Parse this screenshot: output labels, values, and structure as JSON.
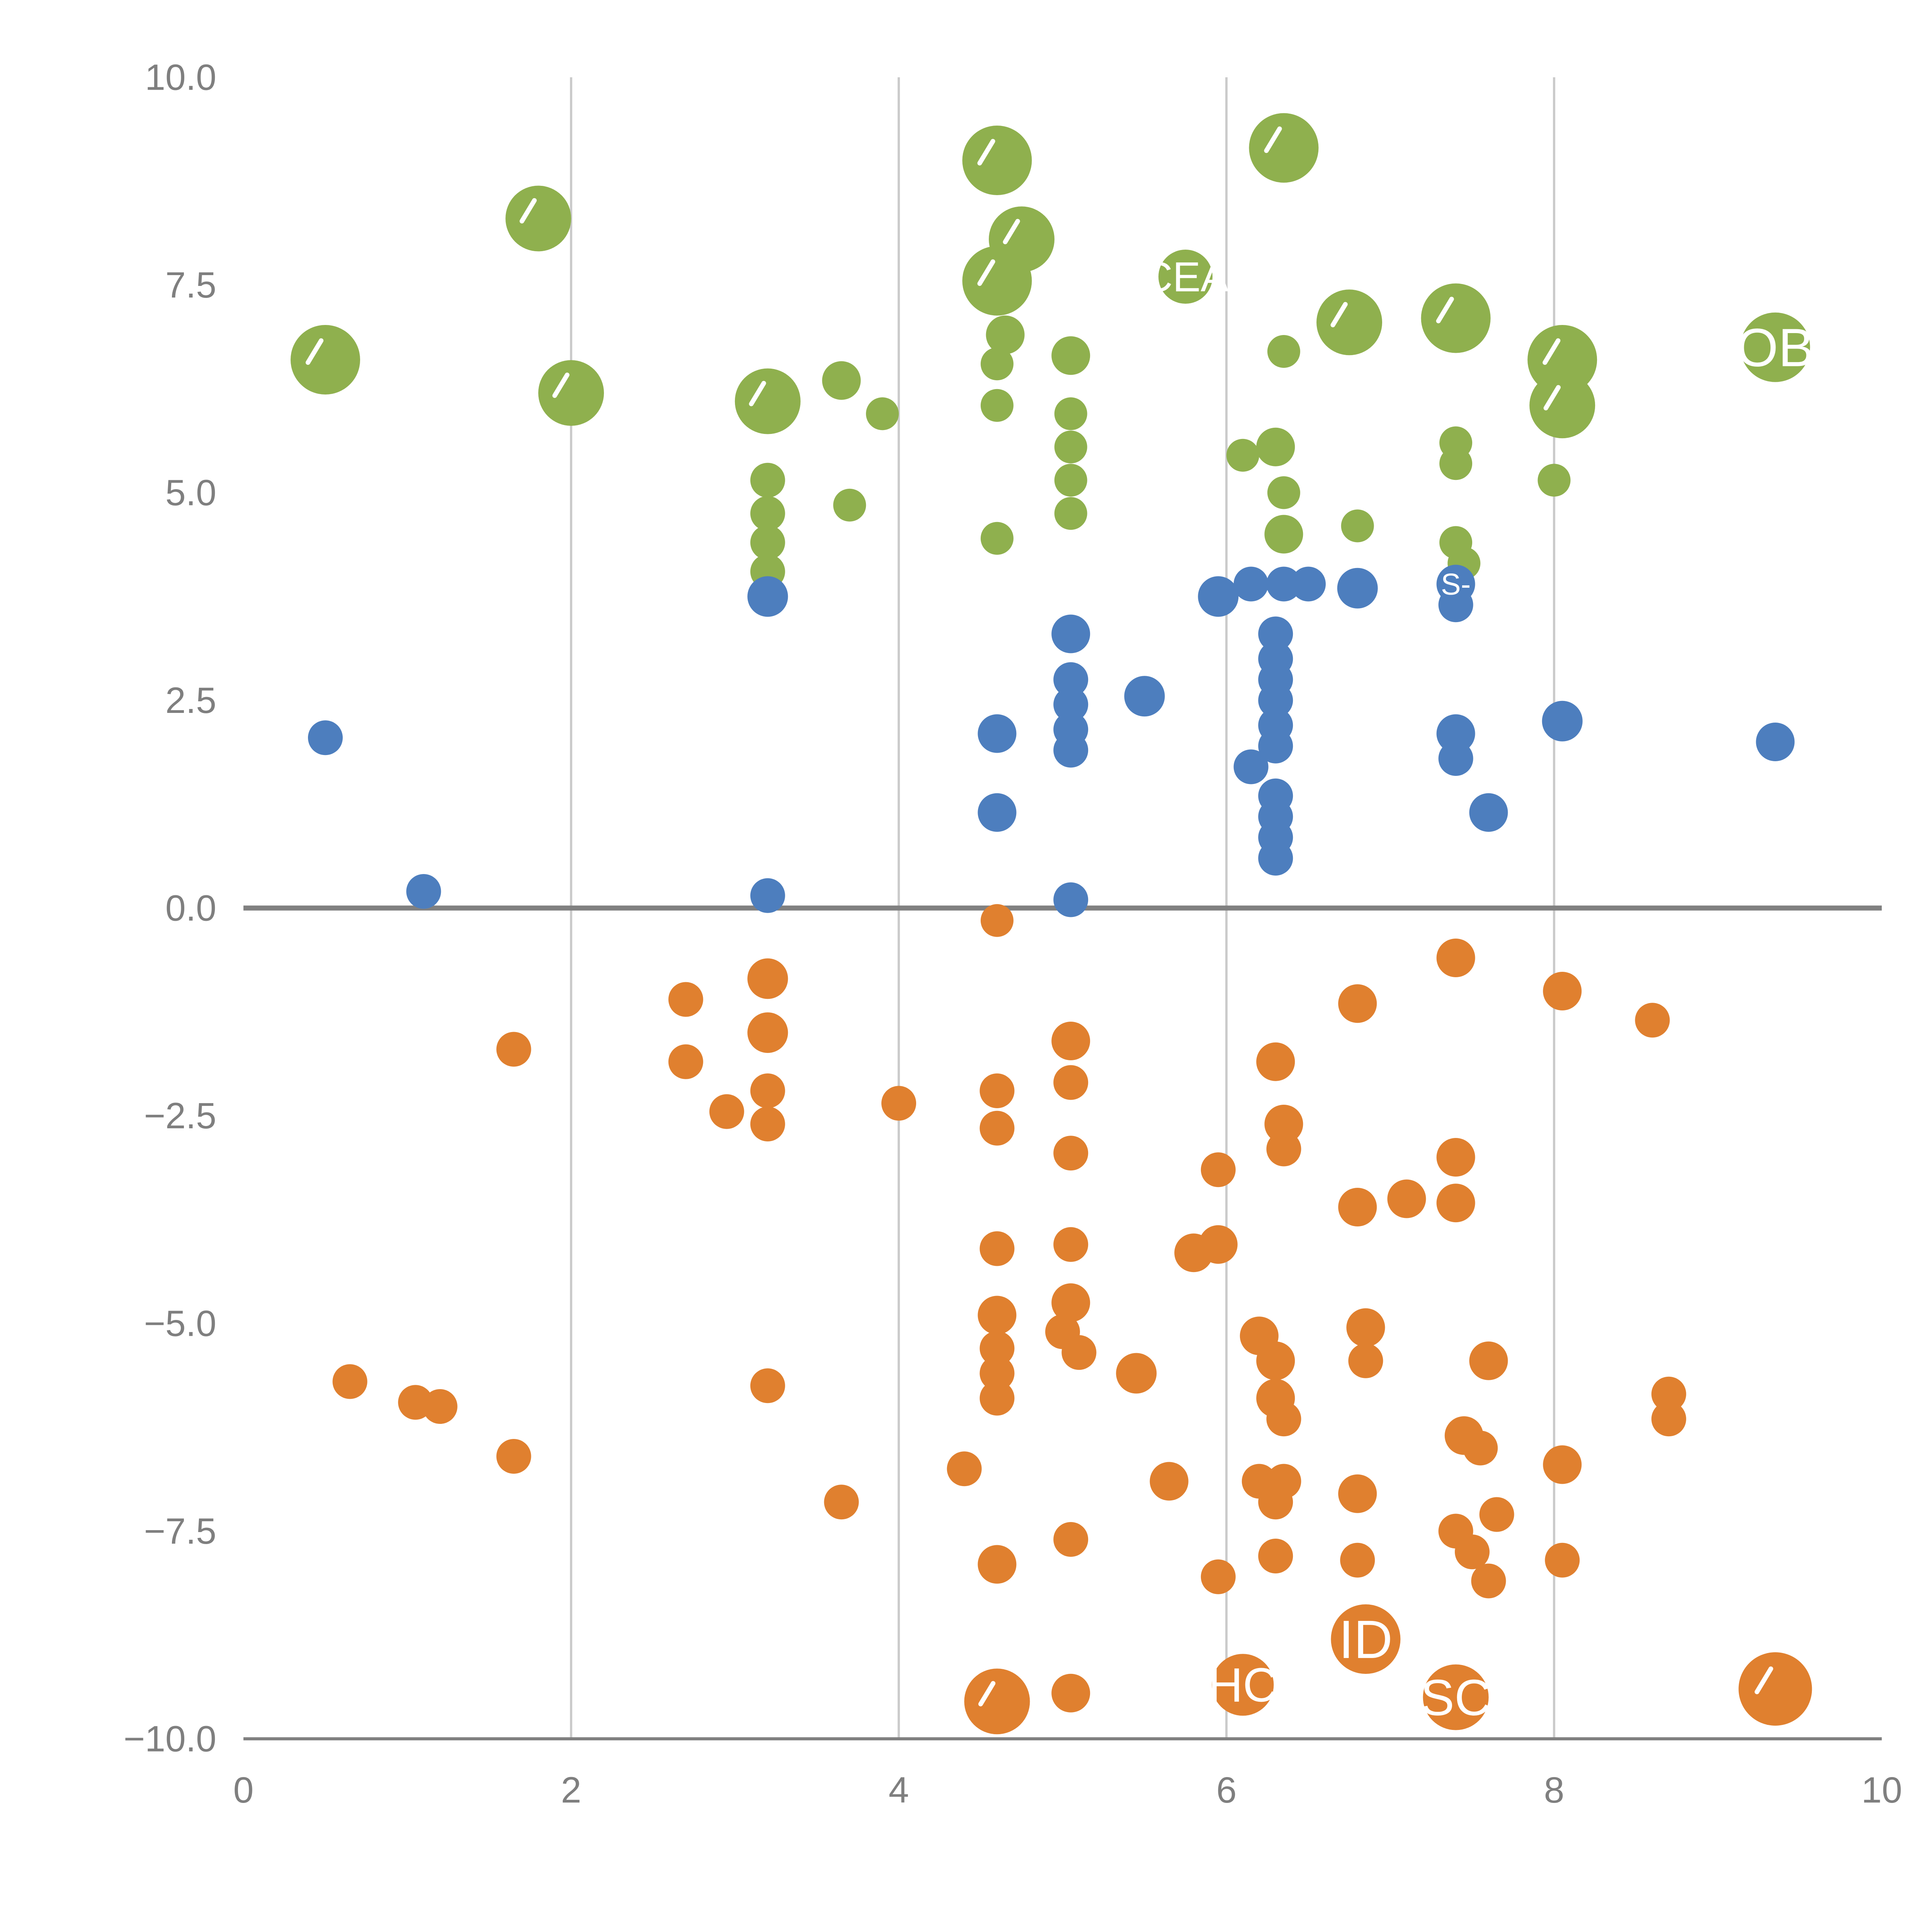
{
  "chart_data": {
    "type": "scatter",
    "title": "",
    "xlabel": "",
    "ylabel": "",
    "xlim": [
      0,
      10
    ],
    "ylim": [
      -10,
      10
    ],
    "grid": "vertical-only",
    "legend": "none",
    "grid_x": [
      2,
      4,
      6,
      8
    ],
    "zero_line_y": 0,
    "x_ticks": [
      {
        "v": 0,
        "label": "0"
      },
      {
        "v": 2,
        "label": "2"
      },
      {
        "v": 4,
        "label": "4"
      },
      {
        "v": 6,
        "label": "6"
      },
      {
        "v": 8,
        "label": "8"
      },
      {
        "v": 10,
        "label": "10"
      }
    ],
    "y_ticks": [
      {
        "v": 10,
        "label": "10.0"
      },
      {
        "v": 7.5,
        "label": "7.5"
      },
      {
        "v": 5,
        "label": "5.0"
      },
      {
        "v": 2.5,
        "label": "2.5"
      },
      {
        "v": 0,
        "label": "0.0"
      },
      {
        "v": -2.5,
        "label": "−2.5"
      },
      {
        "v": -5,
        "label": "−5.0"
      },
      {
        "v": -7.5,
        "label": "−7.5"
      },
      {
        "v": -10,
        "label": "−10.0"
      }
    ],
    "colors": {
      "green": "#8FB04E",
      "blue": "#4D7EBE",
      "orange": "#E0802F",
      "grid": "#cbcbcb",
      "axis": "#808080",
      "tick_text": "#7f7f7f",
      "bubble_label": "#ffffff"
    },
    "series": [
      {
        "name": "series-green",
        "color": "#8FB04E",
        "points": [
          [
            0.5,
            6.6,
            18
          ],
          [
            1.8,
            8.3,
            17
          ],
          [
            2.0,
            6.2,
            17
          ],
          [
            3.2,
            6.1,
            17
          ],
          [
            3.2,
            5.15,
            9
          ],
          [
            3.2,
            4.75,
            9
          ],
          [
            3.2,
            4.4,
            9
          ],
          [
            3.2,
            4.05,
            9
          ],
          [
            3.65,
            6.35,
            10
          ],
          [
            3.7,
            4.85,
            8.5
          ],
          [
            3.9,
            5.95,
            8.5
          ],
          [
            4.6,
            9.0,
            18
          ],
          [
            4.75,
            8.05,
            17
          ],
          [
            4.6,
            7.55,
            18
          ],
          [
            4.65,
            6.9,
            10
          ],
          [
            4.6,
            6.55,
            8.5
          ],
          [
            4.6,
            6.05,
            8.5
          ],
          [
            4.6,
            4.45,
            8.5
          ],
          [
            5.05,
            6.65,
            10
          ],
          [
            5.05,
            5.95,
            8.5
          ],
          [
            5.05,
            5.55,
            8.5
          ],
          [
            5.05,
            5.15,
            8.5
          ],
          [
            5.05,
            4.75,
            8.5
          ],
          [
            5.75,
            7.6,
            14,
            "CEA"
          ],
          [
            6.35,
            9.15,
            18
          ],
          [
            6.35,
            6.7,
            8.5
          ],
          [
            6.3,
            5.55,
            10
          ],
          [
            6.1,
            5.45,
            8.5
          ],
          [
            6.35,
            5.0,
            8.5
          ],
          [
            6.35,
            4.5,
            10
          ],
          [
            6.75,
            7.05,
            17
          ],
          [
            6.8,
            4.6,
            8.5
          ],
          [
            7.4,
            7.1,
            18
          ],
          [
            7.4,
            5.6,
            8.5
          ],
          [
            7.4,
            5.35,
            8.5
          ],
          [
            7.4,
            4.4,
            8.5
          ],
          [
            7.45,
            4.15,
            8.5
          ],
          [
            8.05,
            6.6,
            18
          ],
          [
            8.05,
            6.05,
            17
          ],
          [
            8.0,
            5.15,
            8.5
          ],
          [
            9.35,
            6.75,
            18,
            "OB"
          ]
        ]
      },
      {
        "name": "series-blue",
        "color": "#4D7EBE",
        "points": [
          [
            0.5,
            2.05,
            9
          ],
          [
            1.1,
            0.2,
            9
          ],
          [
            3.2,
            3.75,
            10.5
          ],
          [
            3.2,
            0.15,
            9
          ],
          [
            4.6,
            2.1,
            10
          ],
          [
            4.6,
            1.15,
            10
          ],
          [
            5.05,
            3.3,
            10
          ],
          [
            5.05,
            2.75,
            9
          ],
          [
            5.05,
            2.45,
            9
          ],
          [
            5.05,
            2.15,
            9
          ],
          [
            5.05,
            1.9,
            9
          ],
          [
            5.05,
            0.1,
            9
          ],
          [
            5.5,
            2.55,
            10.5
          ],
          [
            5.95,
            3.75,
            10.5
          ],
          [
            6.15,
            3.9,
            9
          ],
          [
            6.35,
            3.9,
            9
          ],
          [
            6.5,
            3.9,
            9
          ],
          [
            6.3,
            3.3,
            9
          ],
          [
            6.3,
            3.0,
            9
          ],
          [
            6.3,
            2.75,
            9
          ],
          [
            6.3,
            2.5,
            9
          ],
          [
            6.3,
            2.2,
            9
          ],
          [
            6.3,
            1.95,
            9
          ],
          [
            6.15,
            1.7,
            9
          ],
          [
            6.3,
            1.35,
            9
          ],
          [
            6.3,
            1.1,
            9
          ],
          [
            6.3,
            0.85,
            9
          ],
          [
            6.3,
            0.6,
            9
          ],
          [
            6.8,
            3.85,
            10.5
          ],
          [
            7.4,
            3.9,
            10,
            "S-"
          ],
          [
            7.4,
            3.65,
            9
          ],
          [
            7.4,
            2.1,
            10
          ],
          [
            7.4,
            1.8,
            9
          ],
          [
            7.6,
            1.15,
            10
          ],
          [
            8.05,
            2.25,
            10.5
          ],
          [
            9.35,
            2.0,
            10
          ]
        ]
      },
      {
        "name": "series-orange",
        "color": "#E0802F",
        "points": [
          [
            0.65,
            -5.7,
            9
          ],
          [
            1.05,
            -5.95,
            9
          ],
          [
            1.2,
            -6.0,
            9
          ],
          [
            1.65,
            -1.7,
            9
          ],
          [
            1.65,
            -6.6,
            9
          ],
          [
            2.7,
            -1.1,
            9
          ],
          [
            2.7,
            -1.85,
            9
          ],
          [
            2.95,
            -2.45,
            9
          ],
          [
            3.2,
            -0.85,
            10.5
          ],
          [
            3.2,
            -1.5,
            10.5
          ],
          [
            3.2,
            -2.2,
            9
          ],
          [
            3.2,
            -2.6,
            9
          ],
          [
            3.2,
            -5.75,
            9
          ],
          [
            3.65,
            -7.15,
            9
          ],
          [
            4.0,
            -2.35,
            9
          ],
          [
            4.4,
            -6.75,
            9
          ],
          [
            4.6,
            -0.15,
            8.5
          ],
          [
            4.6,
            -2.2,
            9
          ],
          [
            4.6,
            -2.65,
            9
          ],
          [
            4.6,
            -4.1,
            9
          ],
          [
            4.6,
            -4.9,
            10
          ],
          [
            4.6,
            -5.3,
            9
          ],
          [
            4.6,
            -5.6,
            9
          ],
          [
            4.6,
            -5.9,
            9
          ],
          [
            4.6,
            -7.9,
            10
          ],
          [
            4.6,
            -9.55,
            17
          ],
          [
            5.05,
            -1.6,
            10
          ],
          [
            5.05,
            -2.1,
            9
          ],
          [
            5.05,
            -2.95,
            9
          ],
          [
            5.05,
            -4.05,
            9
          ],
          [
            5.05,
            -4.75,
            10
          ],
          [
            5.0,
            -5.1,
            9
          ],
          [
            5.1,
            -5.35,
            9
          ],
          [
            5.05,
            -7.6,
            9
          ],
          [
            5.05,
            -9.45,
            10
          ],
          [
            5.45,
            -5.6,
            10.5
          ],
          [
            5.65,
            -6.9,
            10
          ],
          [
            5.8,
            -4.15,
            10
          ],
          [
            5.95,
            -4.05,
            10
          ],
          [
            5.95,
            -3.15,
            9
          ],
          [
            5.95,
            -8.05,
            9
          ],
          [
            6.2,
            -5.15,
            10
          ],
          [
            6.3,
            -1.85,
            10
          ],
          [
            6.35,
            -2.6,
            10
          ],
          [
            6.35,
            -2.9,
            9
          ],
          [
            6.3,
            -5.45,
            10
          ],
          [
            6.3,
            -5.9,
            10
          ],
          [
            6.35,
            -6.15,
            9
          ],
          [
            6.2,
            -6.9,
            9
          ],
          [
            6.35,
            -6.9,
            9
          ],
          [
            6.3,
            -7.15,
            9
          ],
          [
            6.3,
            -7.8,
            9
          ],
          [
            6.1,
            -9.35,
            16,
            "HC"
          ],
          [
            6.85,
            -8.8,
            18,
            "ID"
          ],
          [
            6.8,
            -1.15,
            10
          ],
          [
            6.8,
            -3.6,
            10
          ],
          [
            6.85,
            -5.05,
            10
          ],
          [
            6.85,
            -5.45,
            9
          ],
          [
            6.8,
            -7.05,
            10
          ],
          [
            6.8,
            -7.85,
            9
          ],
          [
            7.1,
            -3.5,
            10
          ],
          [
            7.4,
            -0.6,
            10
          ],
          [
            7.4,
            -3.0,
            10
          ],
          [
            7.4,
            -3.55,
            10
          ],
          [
            7.45,
            -6.35,
            10
          ],
          [
            7.55,
            -6.5,
            9
          ],
          [
            7.4,
            -7.5,
            9
          ],
          [
            7.5,
            -7.75,
            9
          ],
          [
            7.6,
            -8.1,
            9
          ],
          [
            7.6,
            -5.45,
            10
          ],
          [
            7.65,
            -7.3,
            9
          ],
          [
            7.4,
            -9.5,
            17,
            "SC"
          ],
          [
            8.05,
            -1.0,
            10
          ],
          [
            8.05,
            -6.7,
            10
          ],
          [
            8.05,
            -7.85,
            9
          ],
          [
            8.6,
            -1.35,
            9
          ],
          [
            8.7,
            -5.85,
            9
          ],
          [
            8.7,
            -6.15,
            9
          ],
          [
            9.35,
            -9.4,
            19
          ]
        ]
      }
    ]
  }
}
